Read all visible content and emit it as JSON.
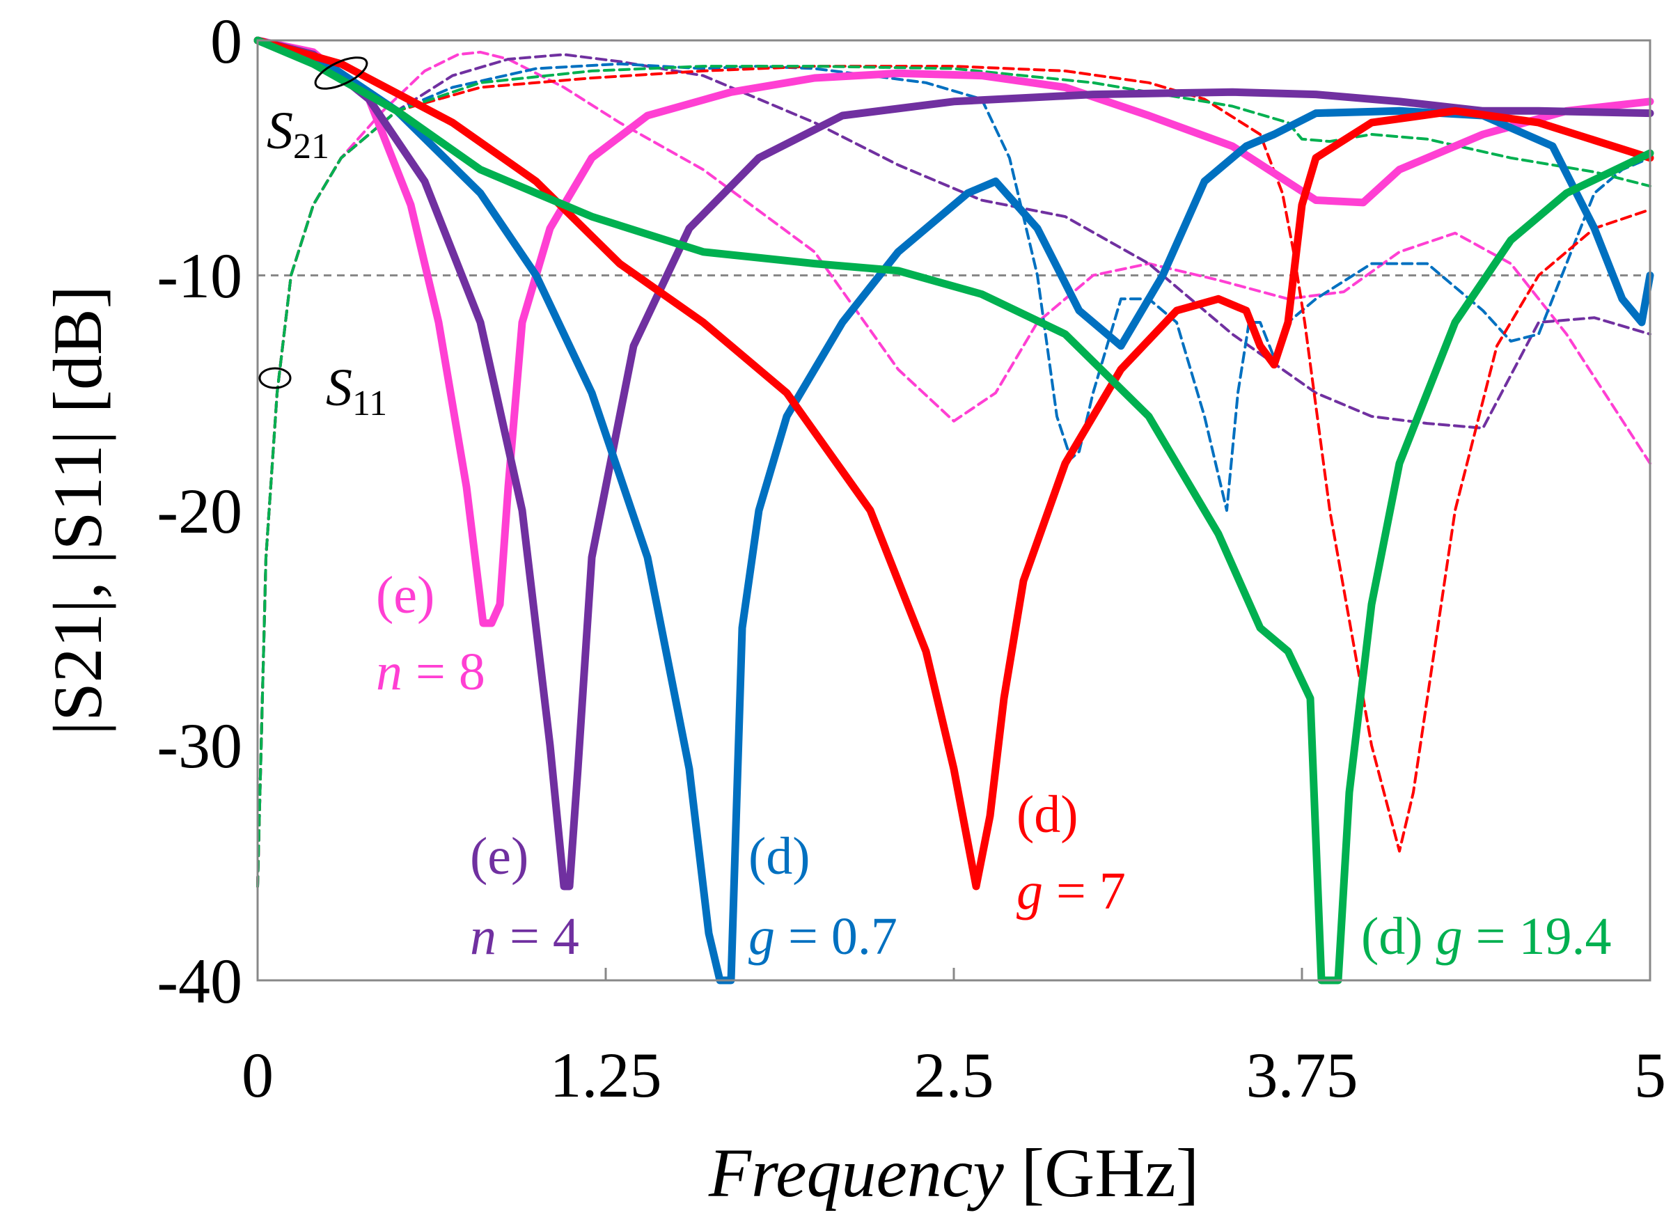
{
  "chart_data": {
    "type": "line",
    "xlabel": "Frequency",
    "xlabel_unit": "[GHz]",
    "ylabel": "|S21|, |S11| [dB]",
    "xlim": [
      0,
      5
    ],
    "ylim": [
      -40,
      0
    ],
    "xticks": [
      "0",
      "1.25",
      "2.5",
      "3.75",
      "5"
    ],
    "yticks": [
      "0",
      "-10",
      "-20",
      "-30",
      "-40"
    ],
    "reference_line_db": -10,
    "series": [
      {
        "name": "(e) n = 8 S21",
        "kind": "S21",
        "color": "#ff3fd3",
        "x": [
          0,
          0.2,
          0.4,
          0.55,
          0.65,
          0.75,
          0.81,
          0.84,
          0.87,
          0.9,
          0.95,
          1.05,
          1.2,
          1.4,
          1.7,
          2.0,
          2.3,
          2.6,
          2.9,
          3.2,
          3.5,
          3.8,
          3.97,
          4.1,
          4.4,
          4.7,
          5.0
        ],
        "y": [
          0,
          -0.5,
          -2.5,
          -7,
          -12,
          -19,
          -24.8,
          -24.8,
          -24,
          -19,
          -12,
          -8,
          -5,
          -3.2,
          -2.2,
          -1.6,
          -1.4,
          -1.5,
          -2.0,
          -3.2,
          -4.5,
          -6.8,
          -6.9,
          -5.5,
          -4,
          -3,
          -2.6
        ]
      },
      {
        "name": "(e) n = 4 S21",
        "kind": "S21",
        "color": "#7030a0",
        "x": [
          0,
          0.2,
          0.4,
          0.6,
          0.8,
          0.95,
          1.05,
          1.1,
          1.12,
          1.15,
          1.2,
          1.35,
          1.55,
          1.8,
          2.1,
          2.5,
          3.0,
          3.5,
          3.8,
          4.1,
          4.4,
          4.6,
          5.0
        ],
        "y": [
          0,
          -0.6,
          -2.5,
          -6,
          -12,
          -20,
          -30,
          -36,
          -36,
          -31,
          -22,
          -13,
          -8,
          -5,
          -3.2,
          -2.6,
          -2.3,
          -2.2,
          -2.3,
          -2.6,
          -3.0,
          -3.0,
          -3.1
        ]
      },
      {
        "name": "(d) g = 0.7 S21",
        "kind": "S21",
        "color": "#0070c0",
        "x": [
          0,
          0.25,
          0.5,
          0.8,
          1.0,
          1.2,
          1.4,
          1.55,
          1.62,
          1.66,
          1.7,
          1.74,
          1.8,
          1.9,
          2.1,
          2.3,
          2.55,
          2.65,
          2.8,
          2.95,
          3.1,
          3.25,
          3.4,
          3.55,
          3.65,
          3.8,
          4.1,
          4.4,
          4.65,
          4.8,
          4.9,
          4.97,
          5.0
        ],
        "y": [
          0,
          -1,
          -3,
          -6.5,
          -10,
          -15,
          -22,
          -31,
          -38,
          -40,
          -40,
          -25,
          -20,
          -16,
          -12,
          -9,
          -6.5,
          -6,
          -8,
          -11.5,
          -13,
          -10,
          -6,
          -4.5,
          -4,
          -3.1,
          -3.0,
          -3.2,
          -4.5,
          -8,
          -11,
          -12,
          -10
        ]
      },
      {
        "name": "(d) g = 7 S21",
        "kind": "S21",
        "color": "#ff0000",
        "x": [
          0,
          0.3,
          0.7,
          1.0,
          1.3,
          1.6,
          1.9,
          2.2,
          2.4,
          2.5,
          2.58,
          2.63,
          2.68,
          2.75,
          2.9,
          3.1,
          3.3,
          3.45,
          3.55,
          3.6,
          3.65,
          3.7,
          3.75,
          3.8,
          4.0,
          4.3,
          4.6,
          5.0
        ],
        "y": [
          0,
          -1,
          -3.5,
          -6,
          -9.5,
          -12,
          -15,
          -20,
          -26,
          -31,
          -36,
          -33,
          -28,
          -23,
          -18,
          -14,
          -11.5,
          -11,
          -11.5,
          -13,
          -13.8,
          -12,
          -7,
          -5,
          -3.5,
          -3,
          -3.5,
          -5
        ]
      },
      {
        "name": "(d) g = 19.4 S21",
        "kind": "S21",
        "color": "#00b050",
        "x": [
          0,
          0.2,
          0.5,
          0.8,
          1.2,
          1.6,
          2.0,
          2.3,
          2.6,
          2.9,
          3.2,
          3.45,
          3.6,
          3.7,
          3.78,
          3.82,
          3.85,
          3.88,
          3.92,
          4.0,
          4.1,
          4.3,
          4.5,
          4.7,
          5.0
        ],
        "y": [
          0,
          -1,
          -3,
          -5.5,
          -7.5,
          -9,
          -9.5,
          -9.8,
          -10.8,
          -12.5,
          -16,
          -21,
          -25,
          -26,
          -28,
          -40,
          -40,
          -40,
          -32,
          -24,
          -18,
          -12,
          -8.5,
          -6.5,
          -4.8
        ]
      },
      {
        "name": "(e) n = 8 S11",
        "kind": "S11",
        "color": "#ff3fd3",
        "x": [
          0,
          0.03,
          0.07,
          0.12,
          0.2,
          0.3,
          0.45,
          0.6,
          0.72,
          0.8,
          0.9,
          1.1,
          1.3,
          1.6,
          2.0,
          2.3,
          2.5,
          2.65,
          2.8,
          3.0,
          3.2,
          3.45,
          3.7,
          3.9,
          4.1,
          4.3,
          4.5,
          4.7,
          5.0
        ],
        "y": [
          -36,
          -22,
          -15,
          -10,
          -7,
          -5,
          -3,
          -1.3,
          -0.6,
          -0.5,
          -0.8,
          -2,
          -3.5,
          -5.5,
          -9,
          -14,
          -16.2,
          -15,
          -12,
          -10,
          -9.5,
          -10.2,
          -11,
          -10.7,
          -9,
          -8.2,
          -9.5,
          -12.5,
          -18
        ]
      },
      {
        "name": "(e) n = 4 S11",
        "kind": "S11",
        "color": "#7030a0",
        "x": [
          0,
          0.03,
          0.07,
          0.12,
          0.2,
          0.3,
          0.5,
          0.7,
          0.9,
          1.1,
          1.3,
          1.6,
          2.0,
          2.3,
          2.6,
          2.9,
          3.2,
          3.5,
          3.8,
          4.0,
          4.2,
          4.4,
          4.6,
          4.8,
          5.0
        ],
        "y": [
          -36,
          -22,
          -15,
          -10,
          -7,
          -5,
          -3,
          -1.5,
          -0.8,
          -0.6,
          -0.9,
          -1.5,
          -3.5,
          -5.3,
          -6.8,
          -7.5,
          -9.5,
          -12.5,
          -15,
          -16,
          -16.3,
          -16.5,
          -12,
          -11.8,
          -12.5
        ]
      },
      {
        "name": "(d) g = 0.7 S11",
        "kind": "S11",
        "color": "#0070c0",
        "x": [
          0,
          0.03,
          0.07,
          0.12,
          0.2,
          0.3,
          0.5,
          0.7,
          1.0,
          1.3,
          1.6,
          1.8,
          2.0,
          2.2,
          2.4,
          2.6,
          2.7,
          2.8,
          2.87,
          2.92,
          2.95,
          3.0,
          3.1,
          3.2,
          3.3,
          3.4,
          3.48,
          3.52,
          3.56,
          3.6,
          3.65,
          3.7,
          3.8,
          4.0,
          4.2,
          4.4,
          4.5,
          4.6,
          4.7,
          4.8,
          4.9,
          5.0
        ],
        "y": [
          -36,
          -22,
          -15,
          -10,
          -7,
          -5,
          -3,
          -2,
          -1.2,
          -1.0,
          -1.2,
          -1.1,
          -1.2,
          -1.5,
          -1.8,
          -2.5,
          -5,
          -10,
          -16,
          -17.8,
          -17.5,
          -15,
          -11,
          -11,
          -12,
          -16,
          -20,
          -15,
          -12,
          -12,
          -13.5,
          -12,
          -11,
          -9.5,
          -9.5,
          -11.5,
          -12.8,
          -12.5,
          -9.5,
          -6.5,
          -5.5,
          -5
        ]
      },
      {
        "name": "(d) g = 7 S11",
        "kind": "S11",
        "color": "#ff0000",
        "x": [
          0,
          0.03,
          0.07,
          0.12,
          0.2,
          0.3,
          0.5,
          0.8,
          1.2,
          1.6,
          2.0,
          2.5,
          2.9,
          3.2,
          3.4,
          3.6,
          3.68,
          3.72,
          3.76,
          3.85,
          4.0,
          4.1,
          4.15,
          4.2,
          4.3,
          4.45,
          4.6,
          4.8,
          5.0
        ],
        "y": [
          -36,
          -22,
          -15,
          -10,
          -7,
          -5,
          -3,
          -2,
          -1.6,
          -1.3,
          -1.1,
          -1.1,
          -1.3,
          -1.8,
          -2.5,
          -4,
          -6.5,
          -9,
          -12,
          -20,
          -30,
          -34.5,
          -32,
          -28,
          -20,
          -13,
          -10,
          -8,
          -7.2
        ]
      },
      {
        "name": "(d) g = 19.4 S11",
        "kind": "S11",
        "color": "#00b050",
        "x": [
          0,
          0.03,
          0.07,
          0.12,
          0.2,
          0.3,
          0.5,
          0.8,
          1.2,
          1.6,
          2.0,
          2.5,
          3.0,
          3.5,
          3.7,
          3.75,
          3.85,
          4.0,
          4.2,
          4.5,
          4.8,
          5.0
        ],
        "y": [
          -36,
          -22,
          -15,
          -10,
          -7,
          -5,
          -3,
          -1.8,
          -1.3,
          -1.1,
          -1.1,
          -1.2,
          -1.8,
          -2.8,
          -3.5,
          -4.2,
          -4.3,
          -4.0,
          -4.2,
          -5.0,
          -5.6,
          -6.2
        ]
      }
    ],
    "annotations": {
      "s21": {
        "sym": "S",
        "sub": "21"
      },
      "s11": {
        "sym": "S",
        "sub": "11"
      },
      "e8": {
        "tag": "(e)",
        "var": "n",
        "rest": " = 8",
        "color": "#ff3fd3"
      },
      "e4": {
        "tag": "(e)",
        "var": "n",
        "rest": " = 4",
        "color": "#7030a0"
      },
      "d07": {
        "tag": "(d)",
        "var": "g",
        "rest": " = 0.7",
        "color": "#0070c0"
      },
      "d7": {
        "tag": "(d)",
        "var": "g",
        "rest": " = 7",
        "color": "#ff0000"
      },
      "d194": {
        "tag": "(d) ",
        "var": "g",
        "rest": " = 19.4",
        "color": "#00b050"
      }
    }
  }
}
